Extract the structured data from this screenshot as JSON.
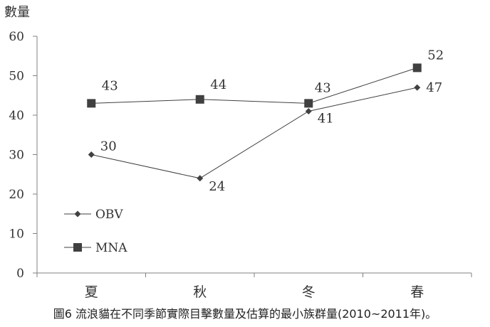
{
  "caption": "圖6 流浪貓在不同季節實際目擊數量及估算的最小族群量(2010~2011年)。",
  "chart_data": {
    "type": "line",
    "title": "",
    "xlabel": "",
    "ylabel": "數量",
    "categories": [
      "夏",
      "秋",
      "冬",
      "春"
    ],
    "ylim": [
      0,
      60
    ],
    "yticks": [
      0,
      10,
      20,
      30,
      40,
      50,
      60
    ],
    "grid": false,
    "legend_position": "bottom-left",
    "series": [
      {
        "name": "OBV",
        "marker": "diamond",
        "values": [
          30,
          24,
          41,
          47
        ],
        "color": "#404040"
      },
      {
        "name": "MNA",
        "marker": "square",
        "values": [
          43,
          44,
          43,
          52
        ],
        "color": "#404040"
      }
    ]
  }
}
